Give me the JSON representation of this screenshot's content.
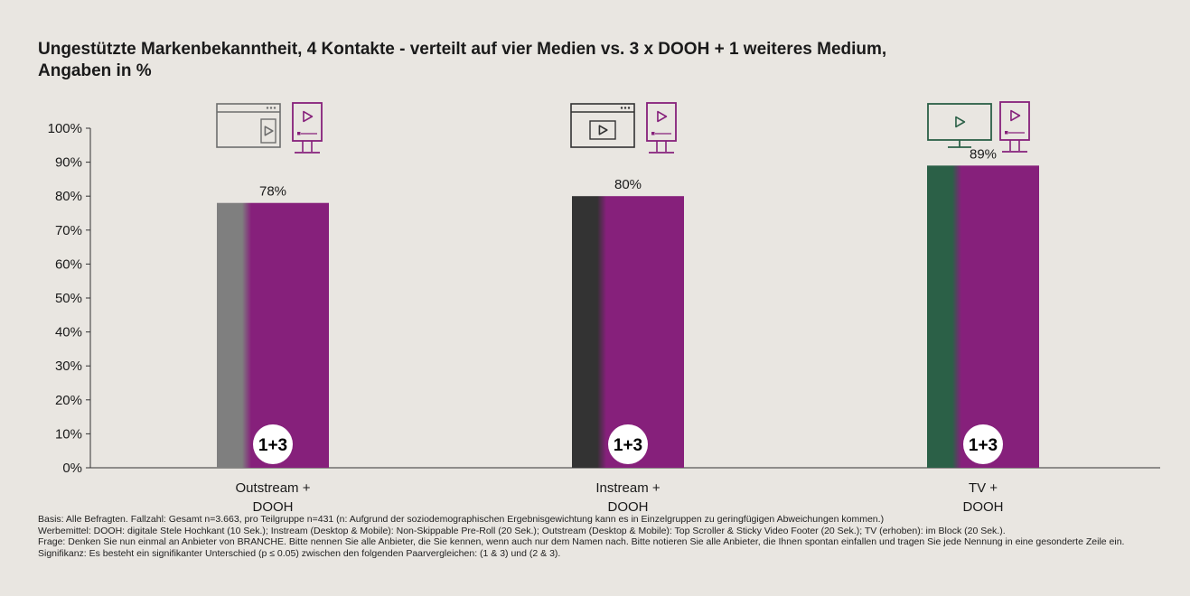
{
  "title_lines": [
    "Ungestützte Markenbekanntheit, 4 Kontakte - verteilt auf vier Medien vs. 3 x DOOH + 1 weiteres Medium,",
    "Angaben in %"
  ],
  "colors": {
    "dooh": "#86207b",
    "outstream": "#7f7f7f",
    "instream": "#333333",
    "tv": "#2b6047",
    "background": "#e9e6e1"
  },
  "chart_data": {
    "type": "bar",
    "categories": [
      [
        "Outstream +",
        "DOOH"
      ],
      [
        "Instream +",
        "DOOH"
      ],
      [
        "TV +",
        "DOOH"
      ]
    ],
    "values": [
      78,
      80,
      89
    ],
    "value_labels": [
      "78%",
      "80%",
      "89%"
    ],
    "badge_labels": [
      "1+3",
      "1+3",
      "1+3"
    ],
    "icons": [
      [
        "browser-outstream-icon",
        "dooh-stele-icon"
      ],
      [
        "browser-instream-icon",
        "dooh-stele-icon"
      ],
      [
        "tv-monitor-icon",
        "dooh-stele-icon"
      ]
    ],
    "ylim": [
      0,
      100
    ],
    "y_ticks": [
      "0%",
      "10%",
      "20%",
      "30%",
      "40%",
      "50%",
      "60%",
      "70%",
      "80%",
      "90%",
      "100%"
    ],
    "grid": false
  },
  "footnotes": [
    "Basis: Alle Befragten. Fallzahl: Gesamt n=3.663, pro Teilgruppe n=431 (n: Aufgrund der soziodemographischen Ergebnisgewichtung kann es in Einzelgruppen zu geringfügigen Abweichungen kommen.)",
    "Werbemittel: DOOH: digitale Stele Hochkant (10 Sek.); Instream (Desktop & Mobile): Non-Skippable Pre-Roll (20 Sek.); Outstream (Desktop & Mobile): Top Scroller & Sticky Video Footer (20 Sek.); TV (erhoben): im Block (20 Sek.).",
    "Frage: Denken Sie nun einmal an Anbieter von BRANCHE. Bitte nennen Sie alle Anbieter, die Sie kennen, wenn auch nur dem Namen nach. Bitte notieren Sie alle Anbieter, die Ihnen spontan einfallen und tragen Sie jede Nennung in eine gesonderte Zeile ein.",
    "Signifikanz: Es besteht ein signifikanter Unterschied (p ≤ 0.05) zwischen den folgenden Paarvergleichen: (1 & 3) und (2 & 3)."
  ]
}
